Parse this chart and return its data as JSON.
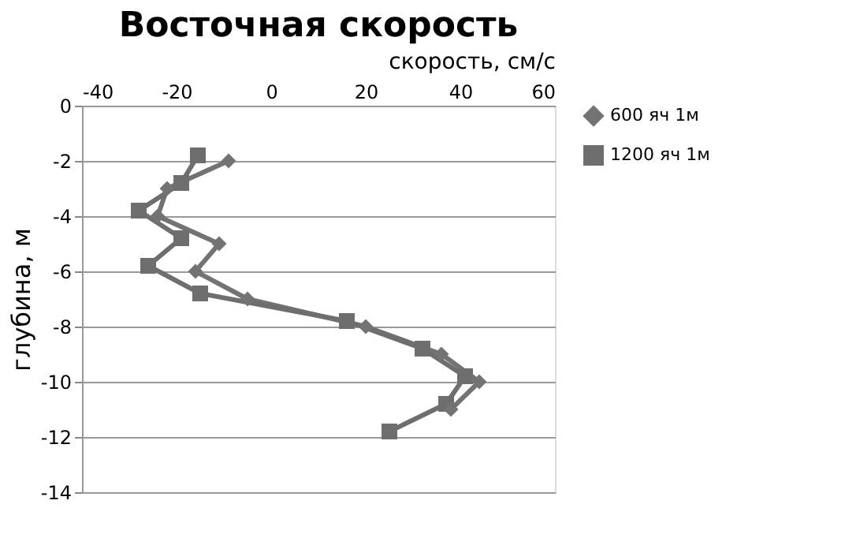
{
  "chart_data": {
    "type": "line",
    "title": "Восточная скорость",
    "xlabel": "скорость, см/с",
    "ylabel": "глубина, м",
    "xlim": [
      -40,
      60
    ],
    "xticks": [
      -40,
      -20,
      0,
      20,
      40,
      60
    ],
    "ylim": [
      -14,
      0
    ],
    "yticks": [
      -14,
      -12,
      -10,
      -8,
      -6,
      -4,
      -2,
      0
    ],
    "grid": "y",
    "legend": "right",
    "series": [
      {
        "name": "600 яч 1м",
        "color": "#737373",
        "marker": "diamond",
        "x": [
          -9,
          -22,
          -24,
          -11,
          -16,
          -5,
          20,
          36,
          44,
          38
        ],
        "values": [
          -2,
          -3,
          -4,
          -5,
          -6,
          -7,
          -8,
          -9,
          -10,
          -11
        ]
      },
      {
        "name": "1200 яч 1м",
        "color": "#6e6e6e",
        "marker": "square",
        "x": [
          -15.5,
          -19,
          -28,
          -19,
          -26,
          -15,
          16,
          32,
          41,
          37,
          25
        ],
        "values": [
          -1.8,
          -2.8,
          -3.8,
          -4.8,
          -5.8,
          -6.8,
          -7.8,
          -8.8,
          -9.8,
          -10.8,
          -11.8
        ]
      }
    ]
  }
}
